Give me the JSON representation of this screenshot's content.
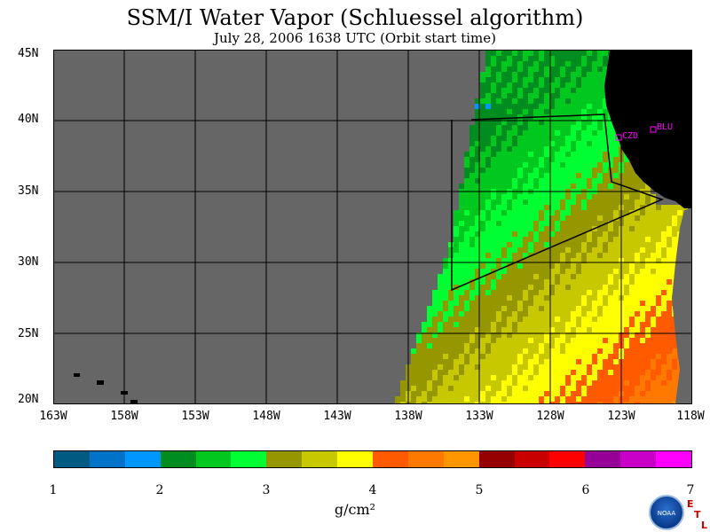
{
  "title": "SSM/I Water Vapor (Schluessel algorithm)",
  "subtitle": "July 28, 2006  1638 UTC  (Orbit start time)",
  "map": {
    "lat_labels": [
      "45N",
      "40N",
      "35N",
      "30N",
      "25N",
      "20N"
    ],
    "lon_labels": [
      "163W",
      "158W",
      "153W",
      "148W",
      "143W",
      "138W",
      "133W",
      "128W",
      "123W",
      "118W"
    ],
    "stations": [
      "CZD",
      "BLU"
    ],
    "colors": {
      "no_data": "#666666",
      "land": "#000000",
      "graticule": "#000000",
      "station": "#ff00ff"
    }
  },
  "colorbar": {
    "colors": [
      "#005a82",
      "#0073c8",
      "#0096ff",
      "#008c1e",
      "#00c81e",
      "#00ff32",
      "#969600",
      "#c8c800",
      "#ffff00",
      "#ff5a00",
      "#ff7800",
      "#ff9600",
      "#960000",
      "#c80000",
      "#ff0000",
      "#960096",
      "#c800c8",
      "#ff00ff"
    ],
    "ticks": [
      "1",
      "2",
      "3",
      "4",
      "5",
      "6",
      "7"
    ],
    "unit": "g/cm²"
  },
  "logo": {
    "noaa": "NOAA",
    "etl": [
      "E",
      "T",
      "L"
    ]
  }
}
